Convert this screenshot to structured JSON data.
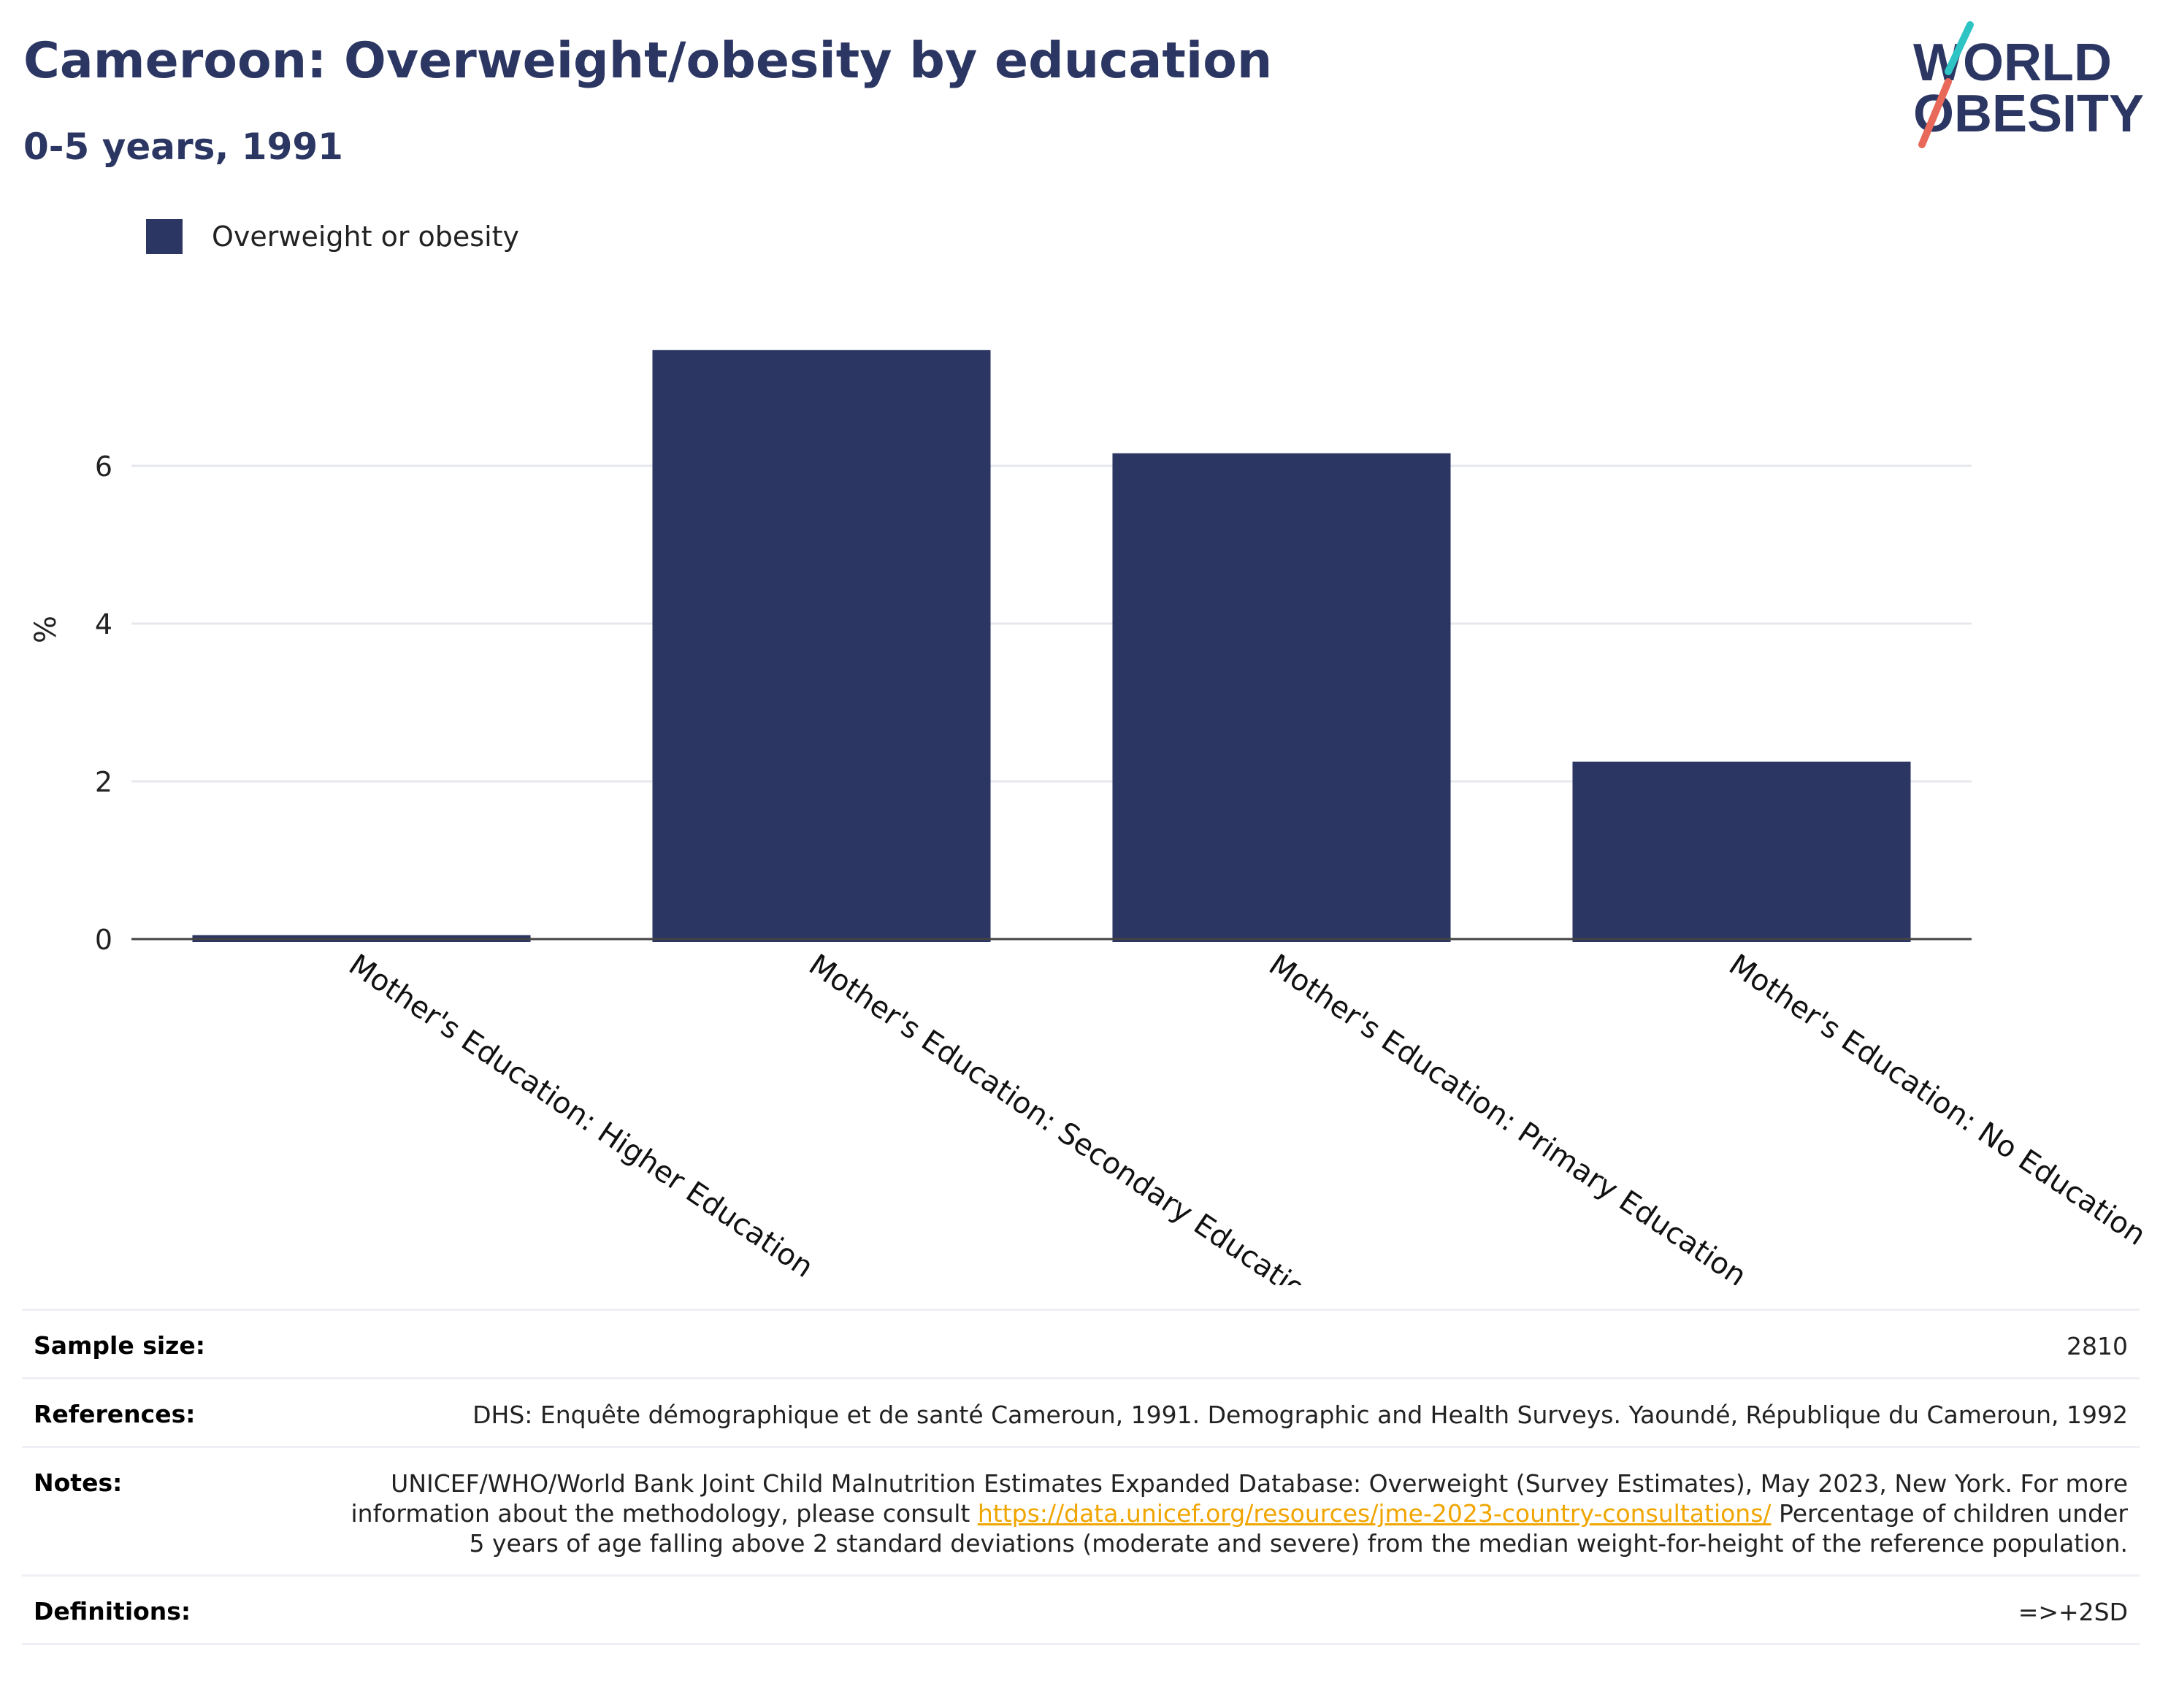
{
  "header": {
    "title": "Cameroon: Overweight/obesity by education",
    "subtitle": "0-5 years, 1991"
  },
  "logo": {
    "line1": "WORLD",
    "line2": "OBESITY",
    "colors": {
      "navy": "#2b3663",
      "teal": "#2ec4c4",
      "coral": "#e8695a"
    }
  },
  "colors": {
    "bar": "#2b3663",
    "grid": "#e6e8ee",
    "axis": "#444444",
    "link": "#f0a500"
  },
  "chart_data": {
    "type": "bar",
    "categories": [
      "Mother's Education: Higher Education",
      "Mother's Education: Secondary Education",
      "Mother's Education: Primary Education",
      "Mother's Education: No Education"
    ],
    "series": [
      {
        "name": "Overweight or obesity",
        "values": [
          0.05,
          7.47,
          6.16,
          2.25
        ]
      }
    ],
    "ylabel": "%",
    "xlabel": "",
    "ylim": [
      0,
      7.5
    ],
    "yticks": [
      0,
      2,
      4,
      6
    ],
    "grid": true,
    "legend": "top-left"
  },
  "table": {
    "sample_size": {
      "label": "Sample size:",
      "value": "2810"
    },
    "references": {
      "label": "References:",
      "value": "DHS: Enquête démographique et de santé Cameroun, 1991. Demographic and Health Surveys. Yaoundé, République du Cameroun, 1992"
    },
    "notes": {
      "label": "Notes:",
      "text_before": "UNICEF/WHO/World Bank Joint Child Malnutrition Estimates Expanded Database: Overweight (Survey Estimates), May 2023, New York. For more information about the methodology, please consult",
      "link": "https://data.unicef.org/resources/jme-2023-country-consultations/",
      "text_after": "Percentage of children under 5 years of age falling above 2 standard deviations (moderate and severe) from the median weight-for-height of the reference population."
    },
    "definitions": {
      "label": "Definitions:",
      "value": "=>+2SD"
    }
  }
}
